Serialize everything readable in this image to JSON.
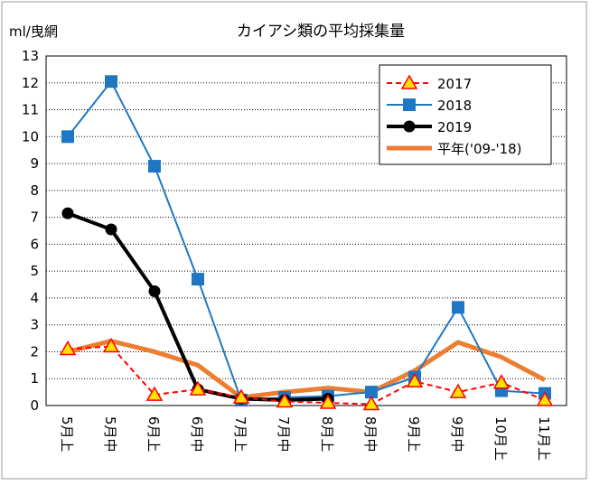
{
  "chart_data": {
    "type": "line",
    "title": "カイアシ類の平均採集量",
    "y_label": "ml/曳網",
    "categories": [
      "5月上",
      "5月中",
      "6月上",
      "6月中",
      "7月上",
      "7月中",
      "8月上",
      "8月中",
      "9月上",
      "9月中",
      "10月上",
      "11月上"
    ],
    "series": [
      {
        "name": "2017",
        "color": "#ff0000",
        "marker": "triangle",
        "dash": true,
        "values": [
          2.1,
          2.2,
          0.4,
          0.6,
          0.3,
          0.15,
          0.1,
          0.05,
          0.9,
          0.5,
          0.85,
          0.2
        ]
      },
      {
        "name": "2018",
        "color": "#1f77c4",
        "marker": "square",
        "dash": false,
        "values": [
          10.0,
          12.05,
          8.9,
          4.7,
          0.2,
          0.3,
          0.35,
          0.5,
          1.05,
          3.65,
          0.55,
          0.45
        ]
      },
      {
        "name": "2019",
        "color": "#000000",
        "marker": "circle",
        "dash": false,
        "values": [
          7.15,
          6.55,
          4.25,
          0.6,
          0.25,
          0.2,
          0.25,
          null,
          null,
          null,
          null,
          null
        ]
      },
      {
        "name": "平年('09-'18)",
        "color": "#ed7d31",
        "marker": "none",
        "dash": false,
        "values": [
          2.0,
          2.4,
          2.0,
          1.5,
          0.3,
          0.5,
          0.65,
          0.5,
          1.3,
          2.35,
          1.8,
          0.95
        ]
      }
    ],
    "ylim": [
      0,
      13
    ],
    "yticks": [
      0,
      1,
      2,
      3,
      4,
      5,
      6,
      7,
      8,
      9,
      10,
      11,
      12,
      13
    ],
    "grid": true
  }
}
